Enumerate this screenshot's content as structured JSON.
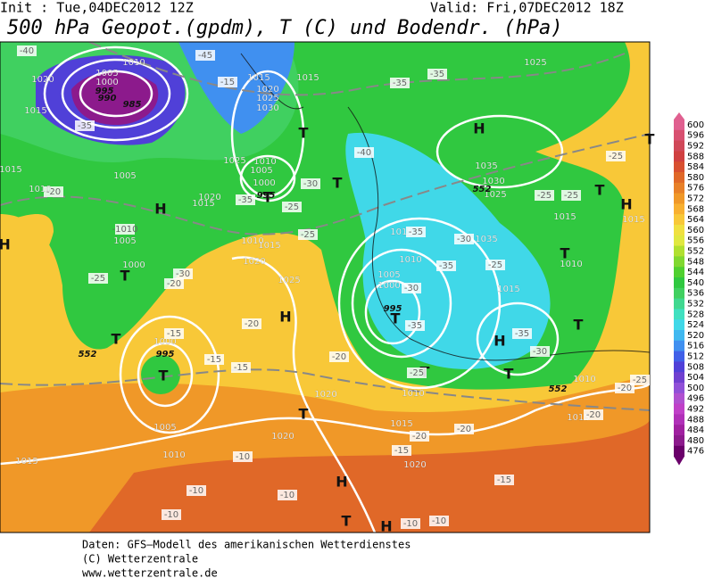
{
  "header": {
    "init": "Init : Tue,04DEC2012 12Z",
    "valid": "Valid: Fri,07DEC2012 18Z",
    "title": "500 hPa Geopot.(gpdm), T (C) und Bodendr. (hPa)"
  },
  "colorbar": {
    "levels": [
      600,
      596,
      592,
      588,
      584,
      580,
      576,
      572,
      568,
      564,
      560,
      556,
      552,
      548,
      544,
      540,
      536,
      532,
      528,
      524,
      520,
      516,
      512,
      508,
      504,
      500,
      496,
      492,
      488,
      484,
      480,
      476
    ],
    "colors": [
      "#e06090",
      "#d85070",
      "#d04858",
      "#d04040",
      "#d85030",
      "#e06828",
      "#e88028",
      "#f09828",
      "#f8b030",
      "#f8c838",
      "#f0e040",
      "#e0e840",
      "#b0e030",
      "#80d830",
      "#50d030",
      "#30c840",
      "#40d060",
      "#40d890",
      "#40e0c0",
      "#40d8e8",
      "#40b8f0",
      "#4090f0",
      "#4060e8",
      "#5040d8",
      "#7040d0",
      "#9050d8",
      "#b050d0",
      "#c040c8",
      "#b030b8",
      "#a020a0",
      "#8c1a8c",
      "#6a006a"
    ]
  },
  "map": {
    "labels": [
      "1010",
      "1005",
      "1000",
      "995",
      "990",
      "985",
      "1020",
      "1015",
      "-35",
      "-45",
      "-40",
      "-15",
      "1015",
      "1020",
      "1025",
      "1030",
      "1015",
      "-35",
      "-35",
      "1025",
      "H",
      "-40",
      "1035",
      "1030",
      "1025",
      "-25",
      "-25",
      "1015",
      "-25",
      "T",
      "T",
      "H",
      "1015",
      "1015",
      "-20",
      "1010",
      "1005",
      "-1010",
      "1005",
      "H",
      "H",
      "-25",
      "1000",
      "T",
      "T",
      "-30",
      "-20",
      "1020",
      "1015",
      "1025",
      "1010",
      "1005",
      "995",
      "1000",
      "-35",
      "-30",
      "-25",
      "T",
      "T",
      "T",
      "1010",
      "1015",
      "1020",
      "1025",
      "-25",
      "H",
      "-20",
      "1000",
      "995",
      "-15",
      "-15",
      "-15",
      "T",
      "1005",
      "1010",
      "1015",
      "1020",
      "-10",
      "-10",
      "-10",
      "-10",
      "T",
      "1020",
      "-20",
      "H",
      "T",
      "H",
      "-10",
      "-10",
      "-15",
      "1020",
      "-20",
      "-15",
      "-20",
      "1015",
      "1010",
      "T",
      "-25",
      "T",
      "995",
      "1000",
      "1005",
      "-30",
      "-35",
      "1015",
      "-35",
      "1010",
      "-35",
      "-30",
      "1035",
      "-25",
      "1015",
      "H",
      "-35",
      "-30",
      "T",
      "T",
      "T",
      "1010",
      "1010",
      "1015",
      "-20",
      "-20",
      "-25",
      "552",
      "552",
      "552"
    ]
  },
  "footer": [
    "Daten: GFS–Modell des amerikanischen Wetterdienstes",
    "(C) Wetterzentrale",
    "www.wetterzentrale.de"
  ]
}
